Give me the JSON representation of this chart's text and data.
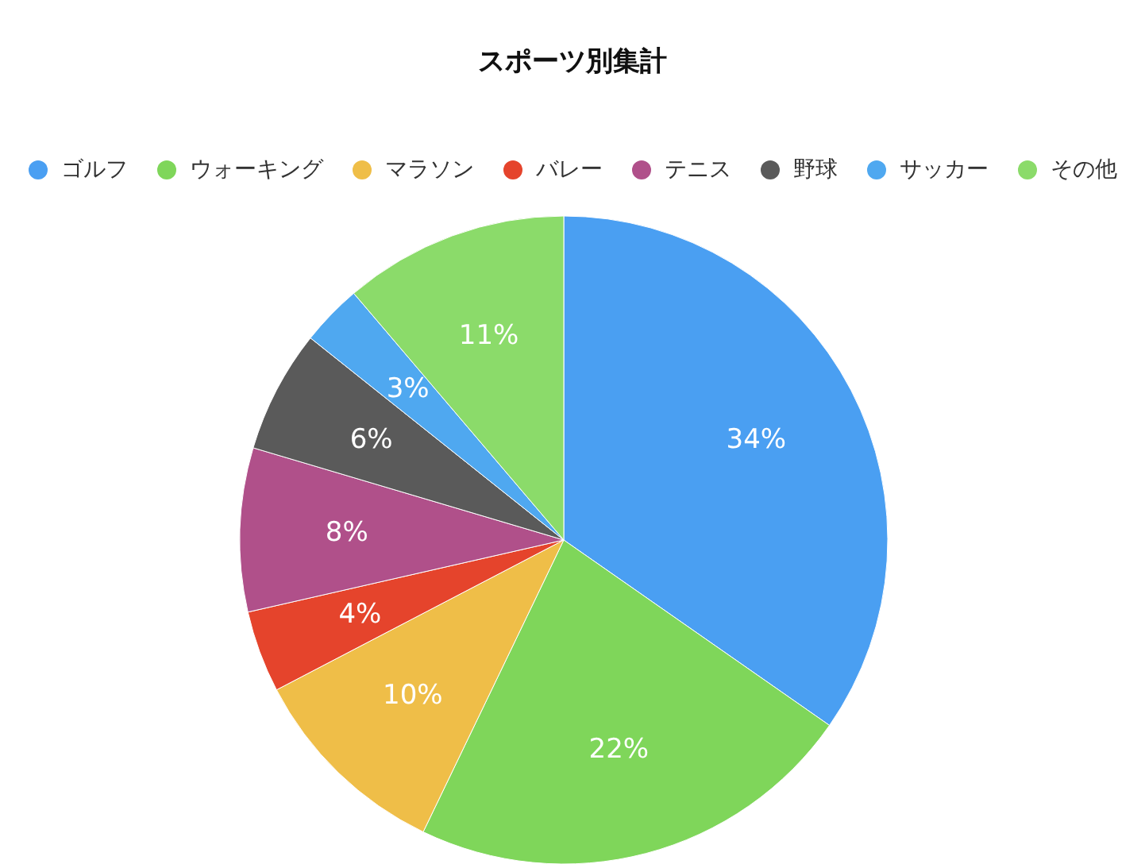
{
  "chart_data": {
    "type": "pie",
    "title": "スポーツ別集計",
    "categories": [
      "ゴルフ",
      "ウォーキング",
      "マラソン",
      "バレー",
      "テニス",
      "野球",
      "サッカー",
      "その他"
    ],
    "values": [
      34,
      22,
      10,
      4,
      8,
      6,
      3,
      11
    ],
    "colors": [
      "#4a9ff2",
      "#7fd65a",
      "#efbe48",
      "#e5442c",
      "#b0508a",
      "#5a5a5a",
      "#4fa8f0",
      "#8bdb6a"
    ],
    "value_labels": [
      "34%",
      "22%",
      "10%",
      "4%",
      "8%",
      "6%",
      "3%",
      "11%"
    ],
    "legend": "top"
  }
}
